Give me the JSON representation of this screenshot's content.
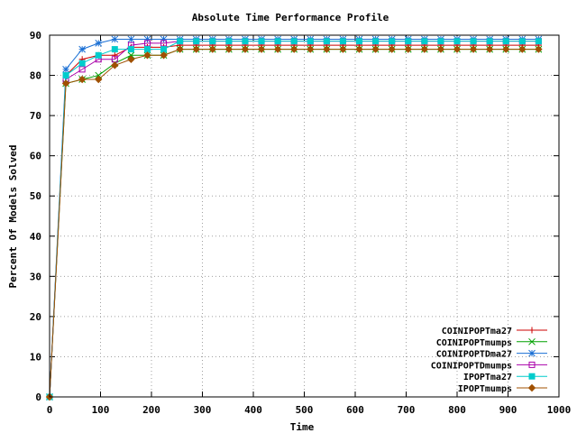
{
  "chart_data": {
    "type": "line",
    "title": "Absolute Time Performance Profile",
    "xlabel": "Time",
    "ylabel": "Percent Of Models Solved",
    "xlim": [
      0,
      1000
    ],
    "ylim": [
      0,
      90
    ],
    "xticks": [
      0,
      100,
      200,
      300,
      400,
      500,
      600,
      700,
      800,
      900,
      1000
    ],
    "yticks": [
      0,
      10,
      20,
      30,
      40,
      50,
      60,
      70,
      80,
      90
    ],
    "grid": true,
    "legend_position": "bottom-right",
    "x": [
      0,
      32,
      64,
      96,
      128,
      160,
      192,
      224,
      256,
      288,
      320,
      352,
      384,
      416,
      448,
      480,
      512,
      544,
      576,
      608,
      640,
      672,
      704,
      736,
      768,
      800,
      832,
      864,
      896,
      928,
      960
    ],
    "series": [
      {
        "name": "COINIPOPTma27",
        "color": "#cc0000",
        "marker": "plus",
        "values": [
          0,
          80,
          84,
          85,
          85,
          87,
          87,
          87,
          87.5,
          87.5,
          87.5,
          87.5,
          87.5,
          87.5,
          87.5,
          87.5,
          87.5,
          87.5,
          87.5,
          87.5,
          87.5,
          87.5,
          87.5,
          87.5,
          87.5,
          87.5,
          87.5,
          87.5,
          87.5,
          87.5,
          87.5
        ]
      },
      {
        "name": "COINIPOPTmumps",
        "color": "#00a000",
        "marker": "cross",
        "values": [
          0,
          78,
          79,
          80,
          83,
          85,
          85,
          85,
          86.5,
          86.5,
          86.5,
          86.5,
          86.5,
          86.5,
          86.5,
          86.5,
          86.5,
          86.5,
          86.5,
          86.5,
          86.5,
          86.5,
          86.5,
          86.5,
          86.5,
          86.5,
          86.5,
          86.5,
          86.5,
          86.5,
          86.5
        ]
      },
      {
        "name": "COINIPOPTDma27",
        "color": "#1a6fd4",
        "marker": "star",
        "values": [
          0,
          81.5,
          86.5,
          88,
          89,
          89,
          89,
          89,
          89,
          89,
          89,
          89,
          89,
          89,
          89,
          89,
          89,
          89,
          89,
          89,
          89,
          89,
          89,
          89,
          89,
          89,
          89,
          89,
          89,
          89,
          89
        ]
      },
      {
        "name": "COINIPOPTDmumps",
        "color": "#aa00aa",
        "marker": "square",
        "values": [
          0,
          79,
          81.5,
          84,
          84,
          87.5,
          88,
          88,
          88.5,
          88.5,
          88.5,
          88.5,
          88.5,
          88.5,
          88.5,
          88.5,
          88.5,
          88.5,
          88.5,
          88.5,
          88.5,
          88.5,
          88.5,
          88.5,
          88.5,
          88.5,
          88.5,
          88.5,
          88.5,
          88.5,
          88.5
        ]
      },
      {
        "name": "IPOPTma27",
        "color": "#00cccc",
        "marker": "filled-square",
        "values": [
          0,
          80,
          83,
          85,
          86.5,
          86.5,
          86.5,
          86.5,
          88.5,
          88.5,
          88.5,
          88.5,
          88.5,
          88.5,
          88.5,
          88.5,
          88.5,
          88.5,
          88.5,
          88.5,
          88.5,
          88.5,
          88.5,
          88.5,
          88.5,
          88.5,
          88.5,
          88.5,
          88.5,
          88.5,
          88.5
        ]
      },
      {
        "name": "IPOPTmumps",
        "color": "#a05000",
        "marker": "diamond",
        "values": [
          0,
          78,
          79,
          79,
          82.5,
          84,
          85,
          85,
          86.5,
          86.5,
          86.5,
          86.5,
          86.5,
          86.5,
          86.5,
          86.5,
          86.5,
          86.5,
          86.5,
          86.5,
          86.5,
          86.5,
          86.5,
          86.5,
          86.5,
          86.5,
          86.5,
          86.5,
          86.5,
          86.5,
          86.5
        ]
      }
    ]
  }
}
